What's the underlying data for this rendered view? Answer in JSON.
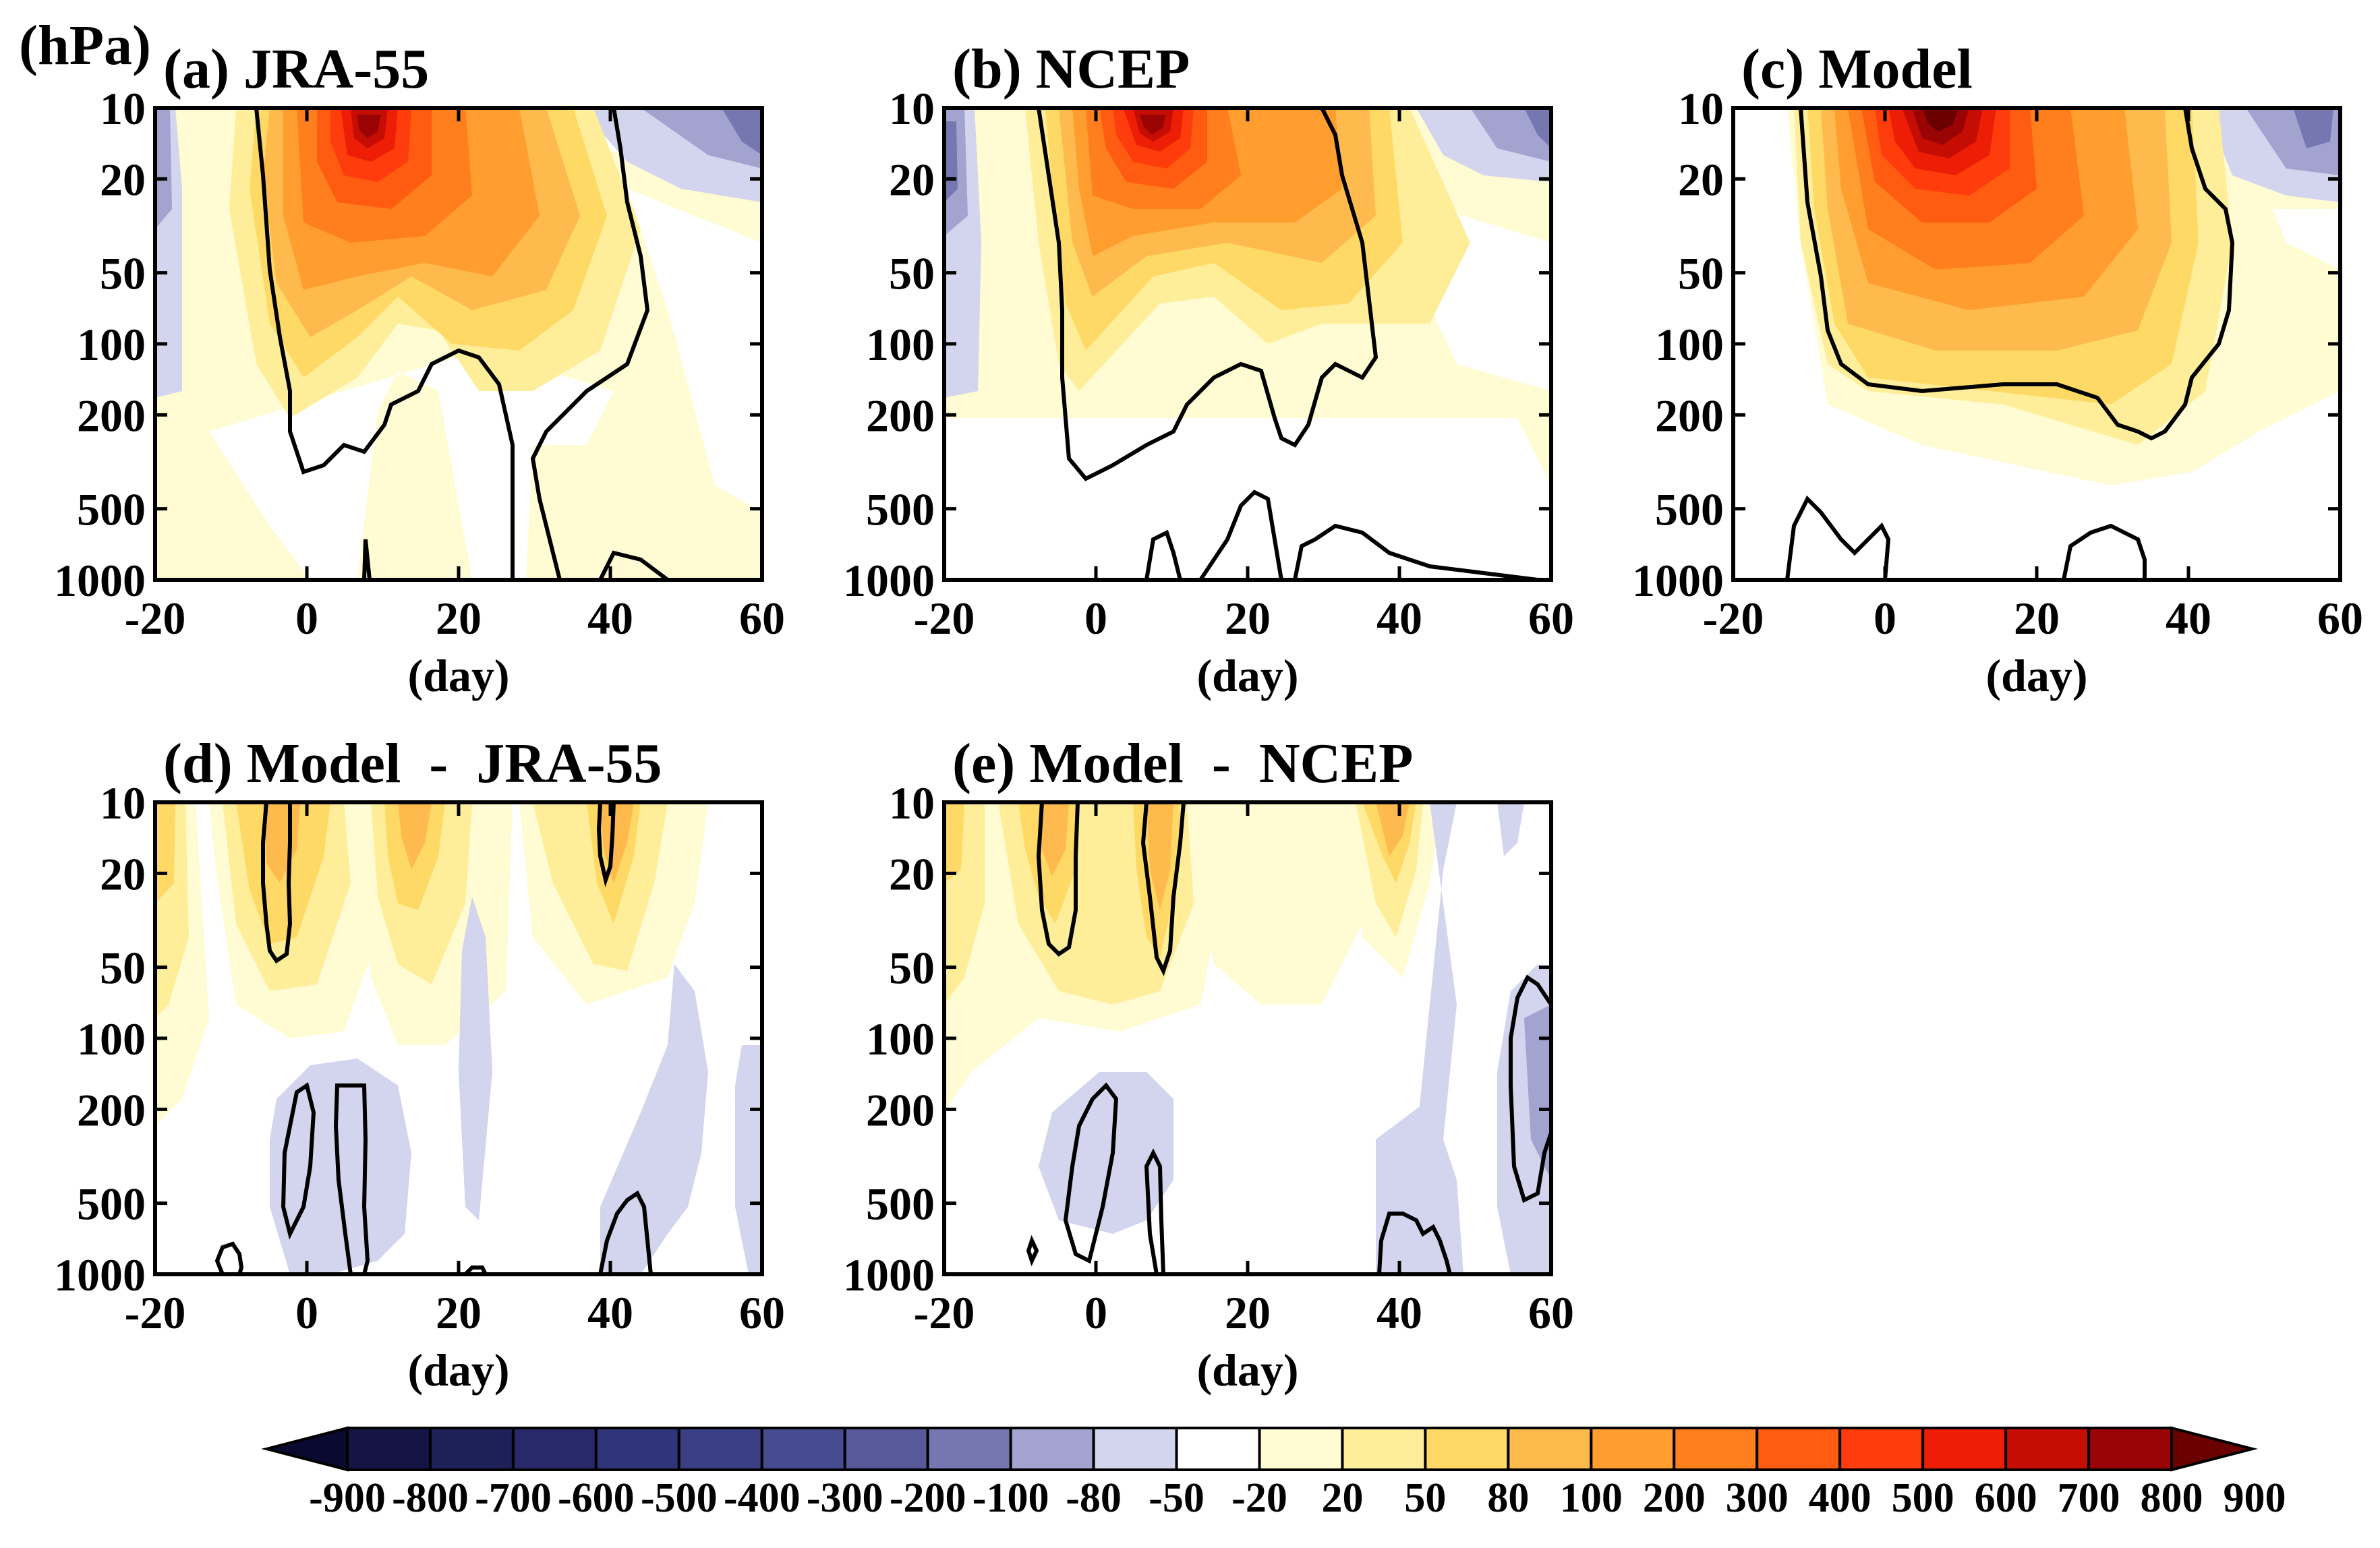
{
  "figure": {
    "unit_label": "(hPa)",
    "xlabel": "(day)"
  },
  "chart_data": [
    {
      "type": "heatmap",
      "title": "(a) JRA-55",
      "x_ticks": [
        "-20",
        "0",
        "20",
        "40",
        "60"
      ],
      "y_ticks": [
        "10",
        "20",
        "50",
        "100",
        "200",
        "500",
        "1000"
      ],
      "xlim": [
        -20,
        60
      ],
      "ylim": [
        1000,
        10
      ],
      "yscale": "log",
      "features": [
        {
          "kind": "negative",
          "level": -200,
          "x": [
            -20,
            -17
          ],
          "p": [
            10,
            150
          ]
        },
        {
          "kind": "negative",
          "level": -200,
          "x": [
            47,
            60
          ],
          "p": [
            10,
            30
          ]
        },
        {
          "kind": "positive",
          "level": 900,
          "x": [
            3,
            3
          ],
          "p": [
            15,
            15
          ]
        },
        {
          "kind": "positive",
          "level": 80,
          "x": [
            -8,
            40
          ],
          "p": [
            10,
            220
          ]
        }
      ]
    },
    {
      "type": "heatmap",
      "title": "(b) NCEP",
      "x_ticks": [
        "-20",
        "0",
        "20",
        "40",
        "60"
      ],
      "y_ticks": [
        "10",
        "20",
        "50",
        "100",
        "200",
        "500",
        "1000"
      ],
      "xlim": [
        -20,
        60
      ],
      "ylim": [
        1000,
        10
      ],
      "yscale": "log",
      "features": [
        {
          "kind": "negative",
          "level": -200,
          "x": [
            -20,
            -16
          ],
          "p": [
            10,
            100
          ]
        },
        {
          "kind": "negative",
          "level": -100,
          "x": [
            44,
            60
          ],
          "p": [
            10,
            25
          ]
        },
        {
          "kind": "positive",
          "level": 900,
          "x": [
            3,
            3
          ],
          "p": [
            14,
            14
          ]
        },
        {
          "kind": "positive",
          "level": 80,
          "x": [
            -5,
            36
          ],
          "p": [
            10,
            280
          ]
        }
      ]
    },
    {
      "type": "heatmap",
      "title": "(c) Model",
      "x_ticks": [
        "-20",
        "0",
        "20",
        "40",
        "60"
      ],
      "y_ticks": [
        "10",
        "20",
        "50",
        "100",
        "200",
        "500",
        "1000"
      ],
      "xlim": [
        -20,
        60
      ],
      "ylim": [
        1000,
        10
      ],
      "yscale": "log",
      "features": [
        {
          "kind": "negative",
          "level": -200,
          "x": [
            48,
            60
          ],
          "p": [
            10,
            30
          ]
        },
        {
          "kind": "positive",
          "level": 900,
          "x": [
            4,
            4
          ],
          "p": [
            13,
            13
          ]
        },
        {
          "kind": "positive",
          "level": 80,
          "x": [
            -10,
            41
          ],
          "p": [
            10,
            260
          ]
        }
      ]
    },
    {
      "type": "heatmap",
      "title": "(d) Model  -  JRA-55",
      "x_ticks": [
        "-20",
        "0",
        "20",
        "40",
        "60"
      ],
      "y_ticks": [
        "10",
        "20",
        "50",
        "100",
        "200",
        "500",
        "1000"
      ],
      "xlim": [
        -20,
        60
      ],
      "ylim": [
        1000,
        10
      ],
      "yscale": "log",
      "features": [
        {
          "kind": "positive",
          "level": 200,
          "x": [
            -4,
            -3
          ],
          "p": [
            10,
            50
          ]
        },
        {
          "kind": "positive",
          "level": 200,
          "x": [
            10,
            10
          ],
          "p": [
            10,
            40
          ]
        },
        {
          "kind": "positive",
          "level": 200,
          "x": [
            39,
            39
          ],
          "p": [
            10,
            25
          ]
        },
        {
          "kind": "negative",
          "level": -20,
          "x": [
            -5,
            6
          ],
          "p": [
            200,
            1000
          ]
        },
        {
          "kind": "negative",
          "level": -20,
          "x": [
            39,
            46
          ],
          "p": [
            200,
            1000
          ]
        }
      ]
    },
    {
      "type": "heatmap",
      "title": "(e) Model  -  NCEP",
      "x_ticks": [
        "-20",
        "0",
        "20",
        "40",
        "60"
      ],
      "y_ticks": [
        "10",
        "20",
        "50",
        "100",
        "200",
        "500",
        "1000"
      ],
      "xlim": [
        -20,
        60
      ],
      "ylim": [
        1000,
        10
      ],
      "yscale": "log",
      "features": [
        {
          "kind": "positive",
          "level": 200,
          "x": [
            -5,
            -2
          ],
          "p": [
            10,
            50
          ]
        },
        {
          "kind": "positive",
          "level": 200,
          "x": [
            8,
            10
          ],
          "p": [
            10,
            60
          ]
        },
        {
          "kind": "positive",
          "level": 100,
          "x": [
            38,
            38
          ],
          "p": [
            10,
            30
          ]
        },
        {
          "kind": "negative",
          "level": -20,
          "x": [
            -6,
            8
          ],
          "p": [
            200,
            1000
          ]
        },
        {
          "kind": "negative",
          "level": -20,
          "x": [
            37,
            46
          ],
          "p": [
            300,
            1000
          ]
        },
        {
          "kind": "negative",
          "level": -50,
          "x": [
            55,
            60
          ],
          "p": [
            150,
            800
          ]
        }
      ]
    }
  ],
  "colorbar": {
    "labels": [
      "-900",
      "-800",
      "-700",
      "-600",
      "-500",
      "-400",
      "-300",
      "-200",
      "-100",
      "-80",
      "-50",
      "-20",
      "20",
      "50",
      "80",
      "100",
      "200",
      "300",
      "400",
      "500",
      "600",
      "700",
      "800",
      "900"
    ],
    "colors": [
      "#0a0a30",
      "#141445",
      "#1e2058",
      "#27296a",
      "#303478",
      "#3b3f85",
      "#474c90",
      "#57599b",
      "#7677b0",
      "#a2a3cf",
      "#d3d4ed",
      "#ffffff",
      "#fffbd2",
      "#ffee99",
      "#ffd966",
      "#ffba4e",
      "#ff9d2f",
      "#ff7e1e",
      "#ff5c12",
      "#ff3c0c",
      "#ee1e06",
      "#c50d04",
      "#9a0404",
      "#6a0000"
    ]
  }
}
